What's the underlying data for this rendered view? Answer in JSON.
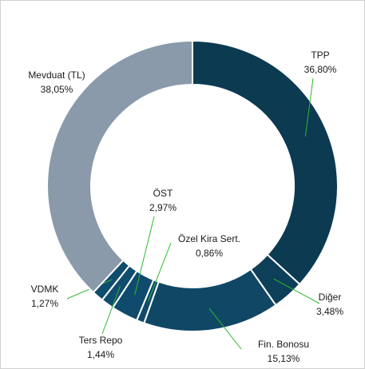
{
  "chart_data": {
    "type": "pie",
    "donut": true,
    "categories": [
      "TPP",
      "Diğer",
      "Fin. Bonosu",
      "Özel Kira Sert.",
      "ÖST",
      "Ters Repo",
      "VDMK",
      "Mevduat (TL)"
    ],
    "values": [
      36.8,
      3.48,
      15.13,
      0.86,
      2.97,
      1.44,
      1.27,
      38.05
    ],
    "value_labels": [
      "36,80%",
      "3,48%",
      "15,13%",
      "0,86%",
      "2,97%",
      "1,44%",
      "1,27%",
      "38,05%"
    ],
    "colors": [
      "#0b3a51",
      "#0d3f59",
      "#0f4765",
      "#0f4a6a",
      "#0f4b6c",
      "#0f4c6d",
      "#0f4d6e",
      "#8a9aab"
    ],
    "leader_color": "#2eb82e"
  }
}
